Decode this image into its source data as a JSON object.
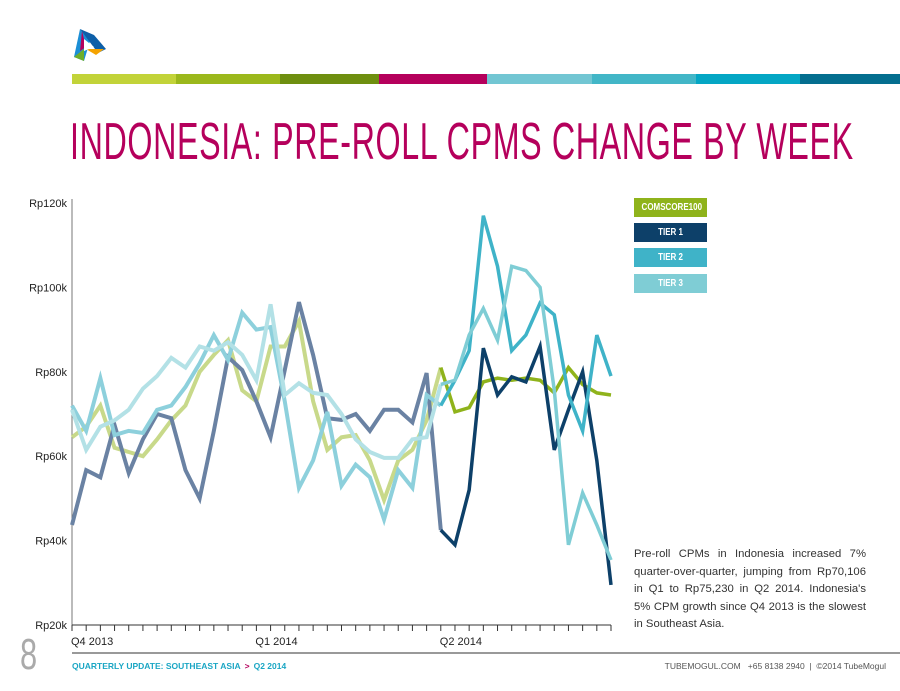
{
  "header": {
    "title": "INDONESIA: PRE-ROLL CPMS CHANGE BY WEEK",
    "color_bars": [
      "#c2d339",
      "#9bb81c",
      "#6e8f0f",
      "#b5005c",
      "#72c6d3",
      "#42b6c7",
      "#04a6c4",
      "#046e8f"
    ]
  },
  "legend": [
    {
      "label": "COMSCORE100",
      "color": "#8fb31b"
    },
    {
      "label": "TIER 1",
      "color": "#0d4069"
    },
    {
      "label": "TIER 2",
      "color": "#3fb3c8"
    },
    {
      "label": "TIER 3",
      "color": "#7fcdd5"
    }
  ],
  "body_text": "Pre-roll CPMs in Indonesia increased 7% quarter-over-quarter, jumping from Rp70,106 in Q1 to Rp75,230 in Q2 2014. Indonesia's 5% CPM growth since Q4 2013 is the slowest in Southeast Asia.",
  "footer": {
    "page_number": "8",
    "left": "QUARTERLY UPDATE: SOUTHEAST ASIA",
    "sep": ">",
    "left2": "Q2 2014",
    "right": "TUBEMOGUL.COM   +65 8138 2940  |  ©2014 TubeMogul"
  },
  "chart_data": {
    "type": "line",
    "title": "INDONESIA: PRE-ROLL CPMS CHANGE BY WEEK",
    "ylabel": "",
    "xlabel": "",
    "ylim": [
      20,
      120
    ],
    "yticks": [
      {
        "v": 120,
        "label": "Rp120k"
      },
      {
        "v": 100,
        "label": "Rp100k"
      },
      {
        "v": 80,
        "label": "Rp80k"
      },
      {
        "v": 60,
        "label": "Rp60k"
      },
      {
        "v": 40,
        "label": "Rp40k"
      },
      {
        "v": 20,
        "label": "Rp20k"
      }
    ],
    "xlabels": [
      {
        "week": 0,
        "label": "Q4 2013"
      },
      {
        "week": 13,
        "label": "Q1 2014"
      },
      {
        "week": 26,
        "label": "Q2 2014"
      }
    ],
    "weeks": 39,
    "highlight_from_week": 26,
    "series": [
      {
        "name": "COMSCORE100",
        "color": "#8fb31b",
        "values": [
          64.5,
          67,
          72,
          62,
          61,
          60,
          64,
          68.5,
          72,
          80,
          84,
          87.5,
          75.6,
          73,
          86,
          86,
          92,
          73,
          61.5,
          64.5,
          65,
          59,
          49.6,
          59,
          61.5,
          68.5,
          81,
          70.5,
          71.5,
          77.6,
          78.5,
          78,
          78.5,
          78,
          75,
          81,
          77,
          75,
          74.5
        ]
      },
      {
        "name": "TIER 1",
        "color": "#0d4069",
        "values": [
          43.7,
          56.7,
          55,
          67.4,
          56,
          64,
          70,
          69,
          56.7,
          50,
          66,
          83.5,
          80.4,
          73,
          64.5,
          80.4,
          96.5,
          84,
          69,
          68.6,
          70,
          66,
          71,
          71,
          68,
          79.7,
          42.5,
          39,
          52,
          85.6,
          74.5,
          78.8,
          77.6,
          86,
          61.5,
          71,
          80,
          59,
          29.5
        ]
      },
      {
        "name": "TIER 2",
        "color": "#3fb3c8",
        "values": [
          72,
          66,
          78.5,
          65,
          66,
          65.5,
          71,
          72,
          76.4,
          82,
          88.7,
          82.8,
          94,
          90,
          90.6,
          73,
          52.5,
          59,
          70.5,
          53,
          58,
          55,
          45,
          56.7,
          52.5,
          74.5,
          72,
          78,
          85,
          117,
          105,
          85,
          88.7,
          96.3,
          93.5,
          74.5,
          66,
          88.7,
          79
        ]
      },
      {
        "name": "TIER 3",
        "color": "#7fcdd5",
        "values": [
          71,
          61.5,
          67,
          68.5,
          71,
          76,
          79,
          83.3,
          81,
          86,
          85,
          87,
          84,
          78,
          96,
          74.5,
          77.3,
          75,
          74.5,
          70,
          64,
          61,
          59.6,
          59.6,
          64,
          64.5,
          77,
          78,
          88.7,
          95,
          87.5,
          105,
          104,
          100,
          75.7,
          39,
          51.3,
          43.7,
          35.4
        ]
      }
    ]
  }
}
